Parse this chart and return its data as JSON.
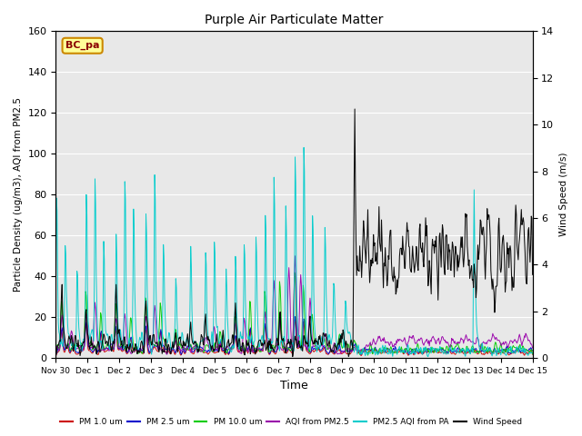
{
  "title": "Purple Air Particulate Matter",
  "ylabel_left": "Particle Density (ug/m3), AQI from PM2.5",
  "ylabel_right": "Wind Speed (m/s)",
  "xlabel": "Time",
  "annotation_text": "BC_pa",
  "ylim_left": [
    0,
    160
  ],
  "ylim_right": [
    0,
    14
  ],
  "yticks_left": [
    0,
    20,
    40,
    60,
    80,
    100,
    120,
    140,
    160
  ],
  "yticks_right": [
    0,
    2,
    4,
    6,
    8,
    10,
    12,
    14
  ],
  "xtick_labels": [
    "Nov 30",
    "Dec 1",
    "Dec 2",
    "Dec 3",
    "Dec 4",
    "Dec 5",
    "Dec 6",
    "Dec 7",
    "Dec 8",
    "Dec 9",
    "Dec 10",
    "Dec 11",
    "Dec 12",
    "Dec 13",
    "Dec 14",
    "Dec 15"
  ],
  "plot_bg_color": "#e8e8e8",
  "series_colors": {
    "PM1": "#cc0000",
    "PM25": "#0000cc",
    "PM10": "#00cc00",
    "AQI_PM25": "#9900aa",
    "PA_AQI": "#00cccc",
    "Wind": "#000000"
  },
  "legend_labels": [
    "PM 1.0 um",
    "PM 2.5 um",
    "PM 10.0 um",
    "AQI from PM2.5",
    "PM2.5 AQI from PA",
    "Wind Speed"
  ],
  "legend_colors": [
    "#cc0000",
    "#0000cc",
    "#00cc00",
    "#9900aa",
    "#00cccc",
    "#000000"
  ]
}
